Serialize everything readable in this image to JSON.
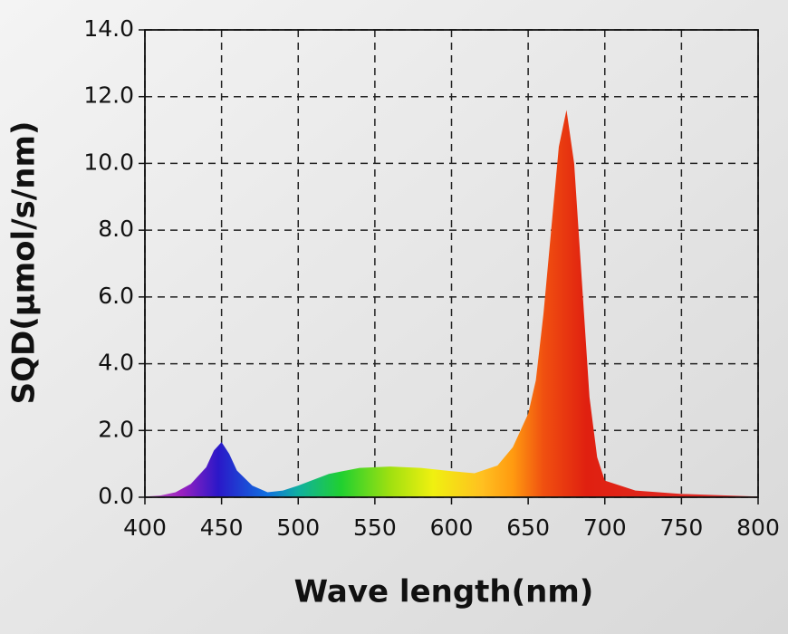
{
  "chart_data": {
    "type": "area",
    "x_label": "Wave length(nm)",
    "y_label": "SQD(μmol/s/nm)",
    "x": [
      400,
      410,
      420,
      430,
      440,
      445,
      450,
      455,
      460,
      470,
      480,
      490,
      500,
      520,
      540,
      560,
      580,
      600,
      615,
      630,
      640,
      650,
      655,
      660,
      665,
      670,
      675,
      680,
      685,
      690,
      695,
      700,
      720,
      750,
      800
    ],
    "values": [
      0.02,
      0.05,
      0.15,
      0.4,
      0.9,
      1.4,
      1.65,
      1.3,
      0.8,
      0.35,
      0.15,
      0.2,
      0.35,
      0.7,
      0.88,
      0.92,
      0.88,
      0.78,
      0.72,
      0.95,
      1.5,
      2.5,
      3.5,
      5.5,
      8.0,
      10.5,
      11.6,
      10.0,
      6.5,
      3.0,
      1.2,
      0.5,
      0.2,
      0.1,
      0.02
    ],
    "xlim": [
      400,
      800
    ],
    "xticks": [
      400,
      450,
      500,
      550,
      600,
      650,
      700,
      750,
      800
    ],
    "ylim": [
      0,
      14
    ],
    "yticks": [
      {
        "value": 0,
        "label": "0.0"
      },
      {
        "value": 2,
        "label": "2.0"
      },
      {
        "value": 4,
        "label": "4.0"
      },
      {
        "value": 6,
        "label": "6.0"
      },
      {
        "value": 8,
        "label": "8.0"
      },
      {
        "value": 10,
        "label": "10.0"
      },
      {
        "value": 12,
        "label": "12.0"
      },
      {
        "value": 14,
        "label": "14.0"
      }
    ],
    "grid": true
  }
}
